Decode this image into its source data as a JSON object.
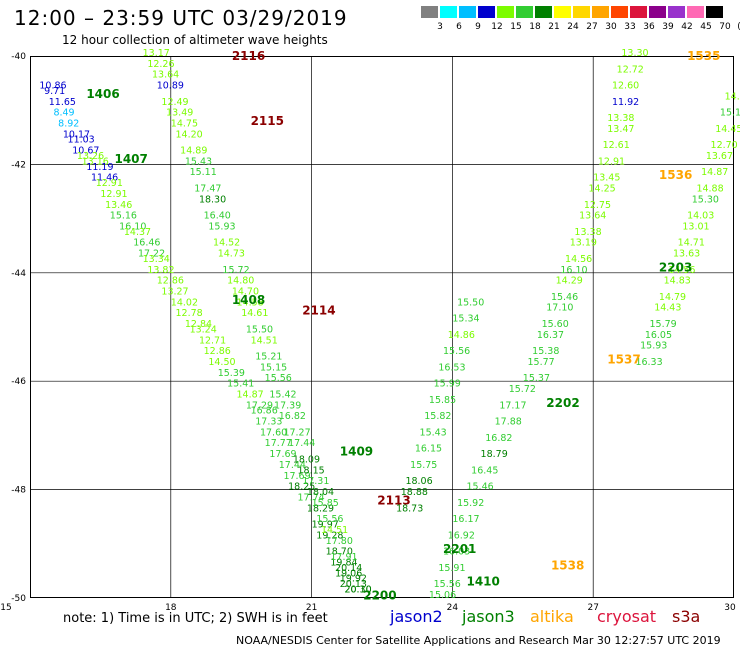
{
  "header": {
    "title": "12:00 – 23:59 UTC 03/29/2019",
    "subtitle": "12 hour collection of altimeter wave heights"
  },
  "colorbar": {
    "colors": [
      "#808080",
      "#00ffff",
      "#00bfff",
      "#0000cd",
      "#7cfc00",
      "#32cd32",
      "#008000",
      "#ffff00",
      "#ffd700",
      "#ffa500",
      "#ff4500",
      "#dc143c",
      "#8b008b",
      "#9932cc",
      "#ff69b4",
      "#000000"
    ],
    "labels": [
      "3",
      "6",
      "9",
      "12",
      "15",
      "18",
      "21",
      "24",
      "27",
      "30",
      "33",
      "36",
      "39",
      "42",
      "45",
      "70",
      "(ft)"
    ]
  },
  "axes": {
    "y_ticks": [
      "-40",
      "-42",
      "-44",
      "-46",
      "-48",
      "-50"
    ],
    "x_ticks": [
      "15",
      "18",
      "21",
      "24",
      "27",
      "30"
    ]
  },
  "note": "note:  1) Time is in UTC; 2) SWH is in feet",
  "legend": [
    {
      "name": "jason2",
      "color": "#0000cd"
    },
    {
      "name": "jason3",
      "color": "#008000"
    },
    {
      "name": "altika",
      "color": "#ffa500"
    },
    {
      "name": "cryosat",
      "color": "#dc143c"
    },
    {
      "name": "s3a",
      "color": "#8b0000"
    }
  ],
  "footer": "NOAA/NESDIS Center for Satellite Applications and Research   Mar 30 12:27:57 UTC 2019",
  "track_labels": [
    {
      "text": "1406",
      "color": "#008000",
      "lon": 16.2,
      "lat": -40.7
    },
    {
      "text": "1407",
      "color": "#008000",
      "lon": 16.8,
      "lat": -41.9
    },
    {
      "text": "2116",
      "color": "#8b0000",
      "lon": 19.3,
      "lat": -40.0
    },
    {
      "text": "2115",
      "color": "#8b0000",
      "lon": 19.7,
      "lat": -41.2
    },
    {
      "text": "1408",
      "color": "#008000",
      "lon": 19.3,
      "lat": -44.5
    },
    {
      "text": "2114",
      "color": "#8b0000",
      "lon": 20.8,
      "lat": -44.7
    },
    {
      "text": "1409",
      "color": "#008000",
      "lon": 21.6,
      "lat": -47.3
    },
    {
      "text": "2113",
      "color": "#8b0000",
      "lon": 22.4,
      "lat": -48.2
    },
    {
      "text": "2201",
      "color": "#008000",
      "lon": 23.8,
      "lat": -49.1
    },
    {
      "text": "2200",
      "color": "#008000",
      "lon": 22.1,
      "lat": -49.95
    },
    {
      "text": "1410",
      "color": "#008000",
      "lon": 24.3,
      "lat": -49.7
    },
    {
      "text": "1538",
      "color": "#ffa500",
      "lon": 26.1,
      "lat": -49.4
    },
    {
      "text": "2202",
      "color": "#008000",
      "lon": 26.0,
      "lat": -46.4
    },
    {
      "text": "1537",
      "color": "#ffa500",
      "lon": 27.3,
      "lat": -45.6
    },
    {
      "text": "2203",
      "color": "#008000",
      "lon": 28.4,
      "lat": -43.9
    },
    {
      "text": "1536",
      "color": "#ffa500",
      "lon": 28.4,
      "lat": -42.2
    },
    {
      "text": "1535",
      "color": "#ffa500",
      "lon": 29.0,
      "lat": -40.0
    }
  ],
  "chart_data": {
    "type": "scatter",
    "title": "12 hour collection of altimeter wave heights",
    "xlabel": "",
    "ylabel": "",
    "xlim": [
      15,
      30
    ],
    "ylim": [
      -50,
      -40
    ],
    "legend_position": "bottom",
    "series": [
      {
        "name": "jason3",
        "points": [
          [
            15.2,
            -40.6,
            10.86
          ],
          [
            15.3,
            -40.7,
            9.71
          ],
          [
            15.4,
            -40.9,
            11.65
          ],
          [
            15.5,
            -41.1,
            8.49
          ],
          [
            15.6,
            -41.3,
            8.92
          ],
          [
            15.7,
            -41.5,
            10.17
          ],
          [
            15.8,
            -41.6,
            11.03
          ],
          [
            15.9,
            -41.8,
            10.67
          ],
          [
            16.0,
            -41.9,
            13.26
          ],
          [
            16.1,
            -42.0,
            13.16
          ],
          [
            16.2,
            -42.1,
            11.19
          ],
          [
            16.3,
            -42.3,
            11.46
          ],
          [
            16.4,
            -42.4,
            12.91
          ],
          [
            16.5,
            -42.6,
            12.91
          ],
          [
            16.6,
            -42.8,
            13.46
          ],
          [
            16.7,
            -43.0,
            15.16
          ],
          [
            16.9,
            -43.2,
            16.1
          ],
          [
            17.0,
            -43.3,
            14.37
          ],
          [
            17.2,
            -43.5,
            16.46
          ],
          [
            17.3,
            -43.7,
            17.22
          ],
          [
            17.4,
            -43.8,
            13.34
          ],
          [
            17.5,
            -44.0,
            13.82
          ],
          [
            17.7,
            -44.2,
            12.86
          ],
          [
            17.8,
            -44.4,
            13.27
          ],
          [
            18.0,
            -44.6,
            14.02
          ],
          [
            18.1,
            -44.8,
            12.78
          ],
          [
            18.3,
            -45.0,
            12.84
          ],
          [
            18.4,
            -45.1,
            13.24
          ],
          [
            18.6,
            -45.3,
            12.71
          ],
          [
            18.7,
            -45.5,
            12.86
          ],
          [
            18.8,
            -45.7,
            14.5
          ],
          [
            19.0,
            -45.9,
            15.39
          ],
          [
            19.2,
            -46.1,
            15.41
          ],
          [
            19.4,
            -46.3,
            14.87
          ],
          [
            19.6,
            -46.5,
            17.29
          ],
          [
            19.7,
            -46.6,
            16.86
          ],
          [
            19.8,
            -46.8,
            17.33
          ],
          [
            19.9,
            -47.0,
            17.6
          ],
          [
            20.0,
            -47.2,
            17.77
          ],
          [
            20.1,
            -47.4,
            17.69
          ],
          [
            20.3,
            -47.6,
            17.44
          ],
          [
            20.4,
            -47.8,
            17.69
          ],
          [
            20.5,
            -48.0,
            18.25
          ],
          [
            20.7,
            -48.2,
            17.74
          ],
          [
            20.9,
            -48.4,
            18.29
          ],
          [
            21.0,
            -48.7,
            19.97
          ],
          [
            21.1,
            -48.9,
            19.28
          ],
          [
            21.3,
            -49.2,
            18.7
          ],
          [
            21.4,
            -49.4,
            19.84
          ],
          [
            21.5,
            -49.6,
            19.06
          ],
          [
            21.6,
            -49.8,
            20.13
          ],
          [
            21.7,
            -49.9,
            20.3
          ]
        ]
      },
      {
        "name": "s3a",
        "points": [
          [
            17.4,
            -40.0,
            13.17
          ],
          [
            17.5,
            -40.2,
            12.26
          ],
          [
            17.6,
            -40.4,
            13.64
          ],
          [
            17.7,
            -40.6,
            10.89
          ],
          [
            17.8,
            -40.9,
            12.49
          ],
          [
            17.9,
            -41.1,
            13.49
          ],
          [
            18.0,
            -41.3,
            14.75
          ],
          [
            18.1,
            -41.5,
            14.2
          ],
          [
            18.2,
            -41.8,
            14.89
          ],
          [
            18.3,
            -42.0,
            15.43
          ],
          [
            18.4,
            -42.2,
            15.11
          ],
          [
            18.5,
            -42.5,
            17.47
          ],
          [
            18.6,
            -42.7,
            18.3
          ],
          [
            18.7,
            -43.0,
            16.4
          ],
          [
            18.8,
            -43.2,
            15.93
          ],
          [
            18.9,
            -43.5,
            14.52
          ],
          [
            19.0,
            -43.7,
            14.73
          ],
          [
            19.1,
            -44.0,
            15.72
          ],
          [
            19.2,
            -44.2,
            14.8
          ],
          [
            19.3,
            -44.4,
            14.7
          ],
          [
            19.4,
            -44.6,
            14.58
          ],
          [
            19.5,
            -44.8,
            14.61
          ],
          [
            19.6,
            -45.1,
            15.5
          ],
          [
            19.7,
            -45.3,
            14.51
          ],
          [
            19.8,
            -45.6,
            15.21
          ],
          [
            19.9,
            -45.8,
            15.15
          ],
          [
            20.0,
            -46.0,
            15.56
          ],
          [
            20.1,
            -46.3,
            15.42
          ],
          [
            20.2,
            -46.5,
            17.39
          ],
          [
            20.3,
            -46.7,
            16.82
          ],
          [
            20.4,
            -47.0,
            17.27
          ],
          [
            20.5,
            -47.2,
            17.44
          ],
          [
            20.6,
            -47.5,
            18.09
          ],
          [
            20.7,
            -47.7,
            18.15
          ],
          [
            20.8,
            -47.9,
            17.31
          ],
          [
            20.9,
            -48.1,
            18.04
          ],
          [
            21.0,
            -48.3,
            15.85
          ],
          [
            21.1,
            -48.6,
            15.56
          ],
          [
            21.2,
            -48.8,
            14.51
          ],
          [
            21.3,
            -49.0,
            17.8
          ],
          [
            21.4,
            -49.3,
            17.91
          ],
          [
            21.5,
            -49.5,
            20.14
          ],
          [
            21.6,
            -49.7,
            19.92
          ],
          [
            21.7,
            -49.9,
            20.1
          ]
        ]
      },
      {
        "name": "jason3",
        "points": [
          [
            27.6,
            -40.0,
            13.3
          ],
          [
            27.5,
            -40.3,
            12.72
          ],
          [
            27.4,
            -40.6,
            12.6
          ],
          [
            27.4,
            -40.9,
            11.92
          ],
          [
            27.3,
            -41.2,
            13.38
          ],
          [
            27.3,
            -41.4,
            13.47
          ],
          [
            27.2,
            -41.7,
            12.61
          ],
          [
            27.1,
            -42.0,
            12.91
          ],
          [
            27.0,
            -42.3,
            13.45
          ],
          [
            26.9,
            -42.5,
            14.25
          ],
          [
            26.8,
            -42.8,
            12.75
          ],
          [
            26.7,
            -43.0,
            13.64
          ],
          [
            26.6,
            -43.3,
            13.38
          ],
          [
            26.5,
            -43.5,
            13.19
          ],
          [
            26.4,
            -43.8,
            14.56
          ],
          [
            26.3,
            -44.0,
            16.1
          ],
          [
            26.2,
            -44.2,
            14.29
          ],
          [
            26.1,
            -44.5,
            15.46
          ],
          [
            26.0,
            -44.7,
            17.1
          ],
          [
            25.9,
            -45.0,
            15.6
          ],
          [
            25.8,
            -45.2,
            16.37
          ],
          [
            25.7,
            -45.5,
            15.38
          ],
          [
            25.6,
            -45.7,
            15.77
          ],
          [
            25.5,
            -46.0,
            15.37
          ],
          [
            25.2,
            -46.2,
            15.72
          ],
          [
            25.0,
            -46.5,
            17.17
          ],
          [
            24.9,
            -46.8,
            17.88
          ],
          [
            24.7,
            -47.1,
            16.82
          ],
          [
            24.6,
            -47.4,
            18.79
          ],
          [
            24.4,
            -47.7,
            16.45
          ],
          [
            24.3,
            -48.0,
            15.46
          ],
          [
            24.1,
            -48.3,
            15.92
          ],
          [
            24.0,
            -48.6,
            16.17
          ],
          [
            23.9,
            -48.9,
            16.92
          ],
          [
            23.8,
            -49.2,
            16.03
          ],
          [
            23.7,
            -49.5,
            15.91
          ],
          [
            23.6,
            -49.8,
            15.56
          ],
          [
            23.5,
            -50.0,
            15.06
          ]
        ]
      },
      {
        "name": "jason3",
        "points": [
          [
            22.8,
            -48.4,
            18.73
          ],
          [
            22.9,
            -48.1,
            18.88
          ],
          [
            23.0,
            -47.9,
            18.06
          ],
          [
            23.1,
            -47.6,
            15.75
          ],
          [
            23.2,
            -47.3,
            16.15
          ],
          [
            23.3,
            -47.0,
            15.43
          ],
          [
            23.4,
            -46.7,
            15.82
          ],
          [
            23.5,
            -46.4,
            15.85
          ],
          [
            23.6,
            -46.1,
            15.99
          ],
          [
            23.7,
            -45.8,
            16.53
          ],
          [
            23.8,
            -45.5,
            15.56
          ],
          [
            23.9,
            -45.2,
            14.86
          ],
          [
            24.0,
            -44.9,
            15.34
          ],
          [
            24.1,
            -44.6,
            15.5
          ]
        ]
      },
      {
        "name": "altika",
        "points": [
          [
            29.8,
            -40.8,
            14.01
          ],
          [
            29.7,
            -41.1,
            15.17
          ],
          [
            29.6,
            -41.4,
            14.45
          ],
          [
            29.5,
            -41.7,
            12.7
          ],
          [
            29.4,
            -41.9,
            13.67
          ],
          [
            29.3,
            -42.2,
            14.87
          ],
          [
            29.2,
            -42.5,
            14.88
          ],
          [
            29.1,
            -42.7,
            15.3
          ],
          [
            29.0,
            -43.0,
            14.03
          ],
          [
            28.9,
            -43.2,
            13.01
          ],
          [
            28.8,
            -43.5,
            14.71
          ],
          [
            28.7,
            -43.7,
            13.63
          ],
          [
            28.6,
            -44.0,
            14.56
          ],
          [
            28.5,
            -44.2,
            14.83
          ],
          [
            28.4,
            -44.5,
            14.79
          ],
          [
            28.3,
            -44.7,
            14.43
          ],
          [
            28.2,
            -45.0,
            15.79
          ],
          [
            28.1,
            -45.2,
            16.05
          ],
          [
            28.0,
            -45.4,
            15.93
          ],
          [
            27.9,
            -45.7,
            16.33
          ]
        ]
      }
    ],
    "point_labels_visible": [
      "10.86",
      "9.71",
      "11.65",
      "8.49",
      "8.92",
      "10.17",
      "11.03",
      "10.67",
      "13.26",
      "13.16",
      "11.19",
      "11.46",
      "12.91",
      "12.91",
      "13.46",
      "15.16",
      "16.10",
      "14.37",
      "16.46",
      "17.22",
      "13.17",
      "12.26",
      "13.64",
      "10.89",
      "12.49",
      "13.49",
      "14.75",
      "14.20",
      "14.89",
      "15.43",
      "15.11",
      "17.47",
      "18.30",
      "16.40",
      "15.93",
      "14.52",
      "14.73",
      "15.72",
      "14.80",
      "14.70",
      "13.30",
      "12.72",
      "12.60",
      "11.92",
      "13.38",
      "13.47",
      "12.61",
      "12.91",
      "13.45",
      "14.25",
      "12.75",
      "13.64",
      "13.38",
      "13.19",
      "14.56",
      "16.10",
      "14.01",
      "15.17",
      "14.45",
      "12.70",
      "13.67",
      "14.87",
      "14.88",
      "15.30",
      "14.03",
      "13.01",
      "14.71",
      "13.63",
      "14.56",
      "14.83"
    ]
  }
}
